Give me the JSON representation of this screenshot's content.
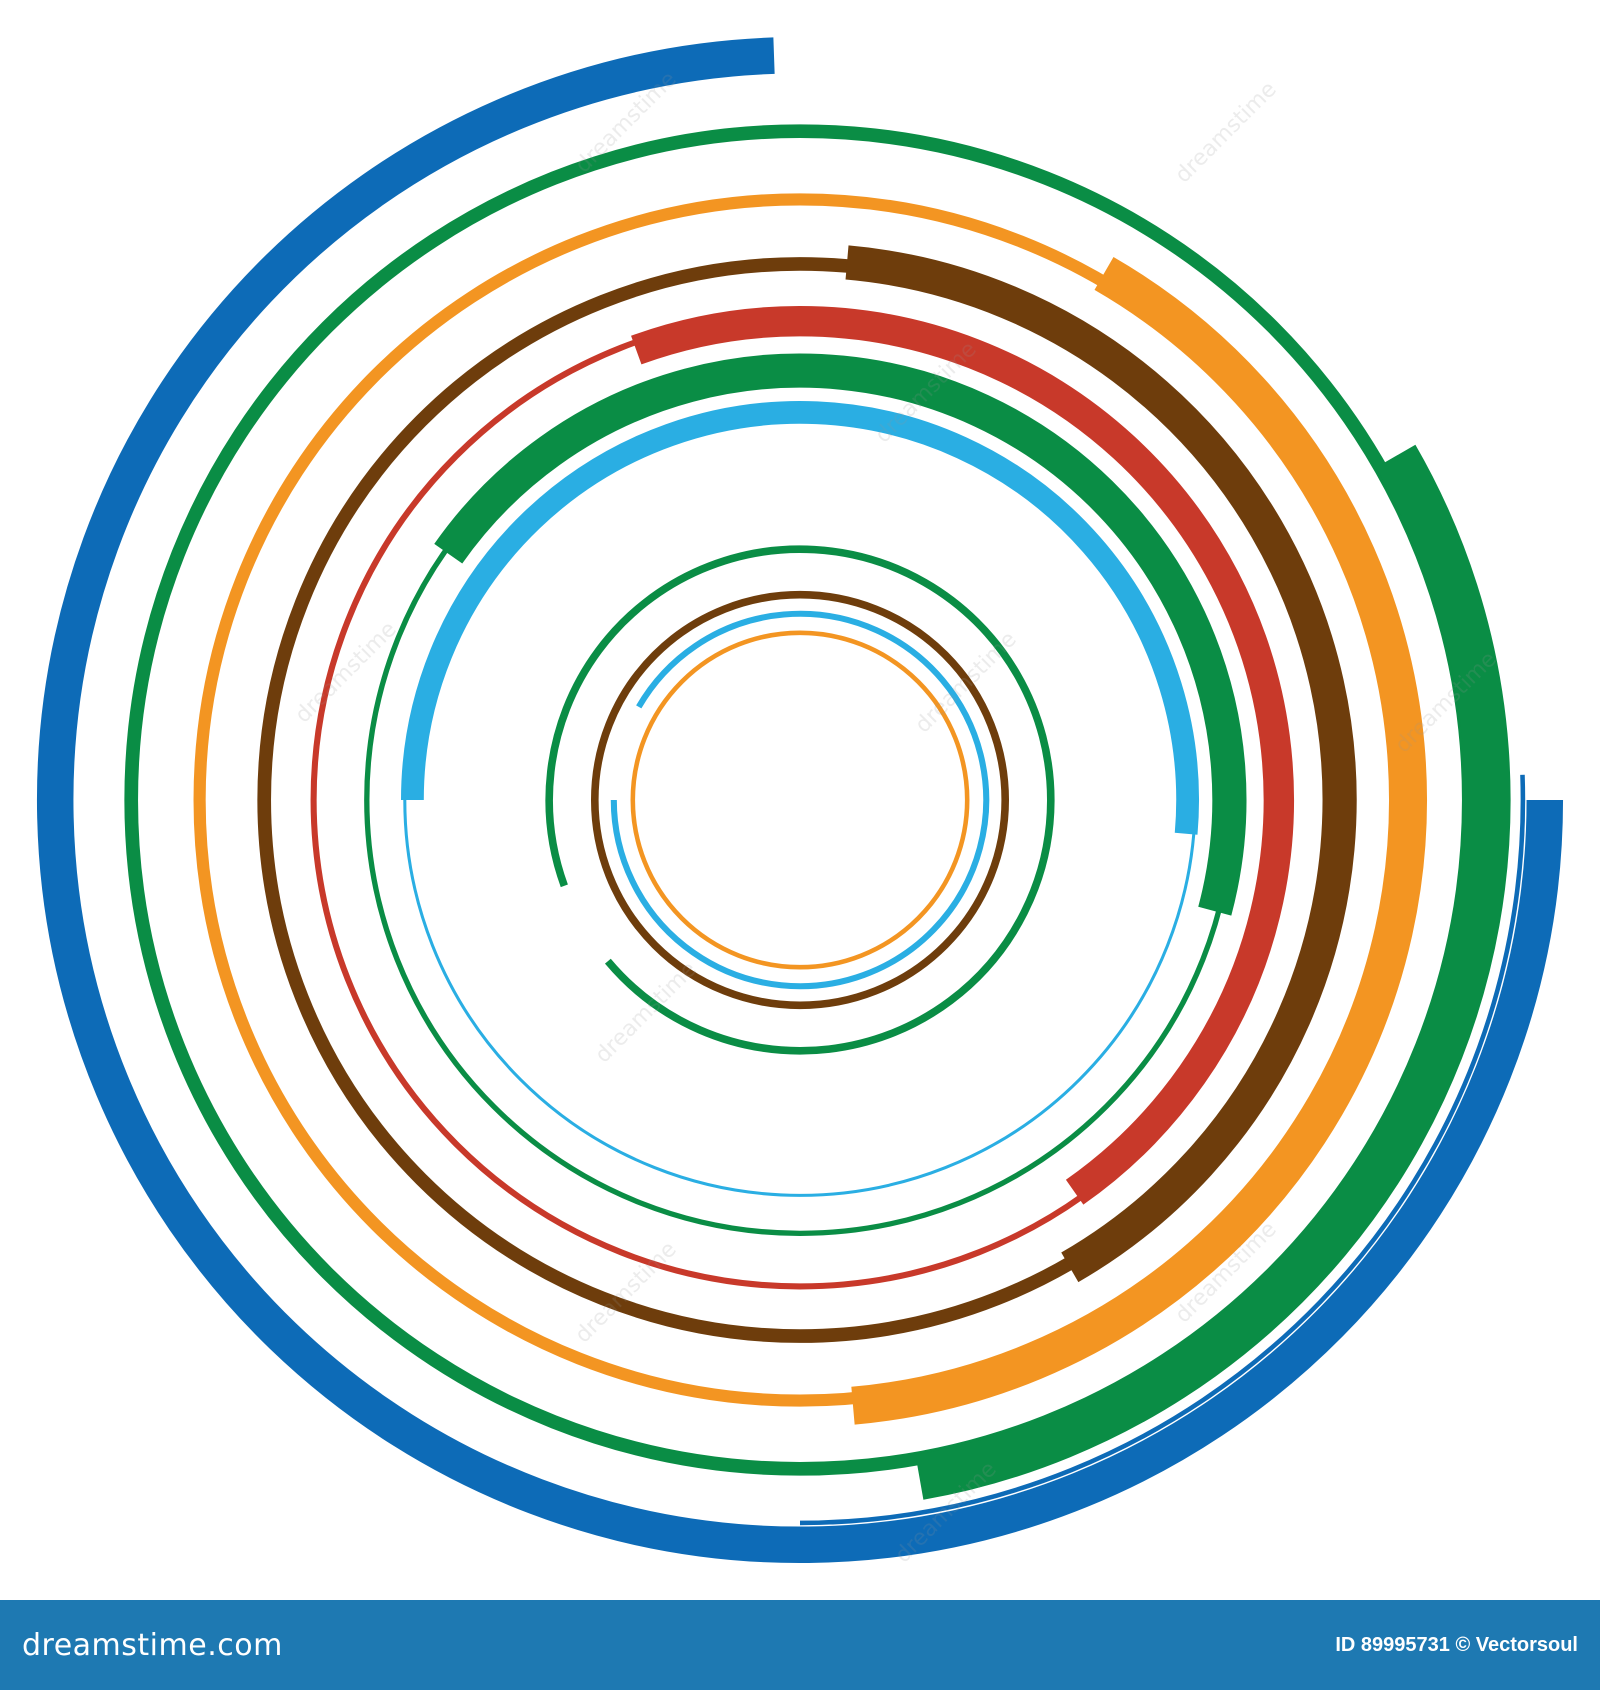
{
  "image": {
    "background": "#ffffff",
    "rings": [
      {
        "color": "#0d6bb7",
        "radius_frac": 0.98,
        "width_frac": 0.048,
        "start": 90,
        "end": 358,
        "thin_color": "#0d6bb7",
        "thin_width_frac": 0.006
      },
      {
        "color": "#0a8d45",
        "radius_frac": 0.88,
        "width_frac": 0.018,
        "start": 0,
        "end": 360
      },
      {
        "color": "#0a8d45",
        "radius_frac": 0.905,
        "width_frac": 0.06,
        "start": 60,
        "end": 170
      },
      {
        "color": "#f39522",
        "radius_frac": 0.79,
        "width_frac": 0.016,
        "start": 0,
        "end": 360
      },
      {
        "color": "#f39522",
        "radius_frac": 0.8,
        "width_frac": 0.05,
        "start": 30,
        "end": 175
      },
      {
        "color": "#6e3d0c",
        "radius_frac": 0.705,
        "width_frac": 0.018,
        "start": 0,
        "end": 360
      },
      {
        "color": "#6e3d0c",
        "radius_frac": 0.71,
        "width_frac": 0.045,
        "start": 5,
        "end": 150
      },
      {
        "color": "#c8392a",
        "radius_frac": 0.64,
        "width_frac": 0.008,
        "start": 0,
        "end": 360
      },
      {
        "color": "#c8392a",
        "radius_frac": 0.63,
        "width_frac": 0.04,
        "start": -20,
        "end": 145
      },
      {
        "color": "#0a8d45",
        "radius_frac": 0.57,
        "width_frac": 0.007,
        "start": 0,
        "end": 360
      },
      {
        "color": "#0a8d45",
        "radius_frac": 0.565,
        "width_frac": 0.045,
        "start": -55,
        "end": 105
      },
      {
        "color": "#2aaee3",
        "radius_frac": 0.52,
        "width_frac": 0.004,
        "start": 0,
        "end": 360
      },
      {
        "color": "#2aaee3",
        "radius_frac": 0.51,
        "width_frac": 0.03,
        "start": -90,
        "end": 95
      },
      {
        "color": "#0a8d45",
        "radius_frac": 0.33,
        "width_frac": 0.01,
        "start": -110,
        "end": 230
      },
      {
        "color": "#6e3d0c",
        "radius_frac": 0.27,
        "width_frac": 0.01,
        "start": 0,
        "end": 360
      },
      {
        "color": "#2aaee3",
        "radius_frac": 0.245,
        "width_frac": 0.008,
        "start": -60,
        "end": 270
      },
      {
        "color": "#f39522",
        "radius_frac": 0.22,
        "width_frac": 0.006,
        "start": -145,
        "end": 220
      }
    ]
  },
  "watermark": {
    "text": "dreamstime"
  },
  "footer": {
    "brand": "dreamstime.com",
    "credit": "ID 89995731 © Vectorsoul",
    "background": "#1e79b2"
  }
}
